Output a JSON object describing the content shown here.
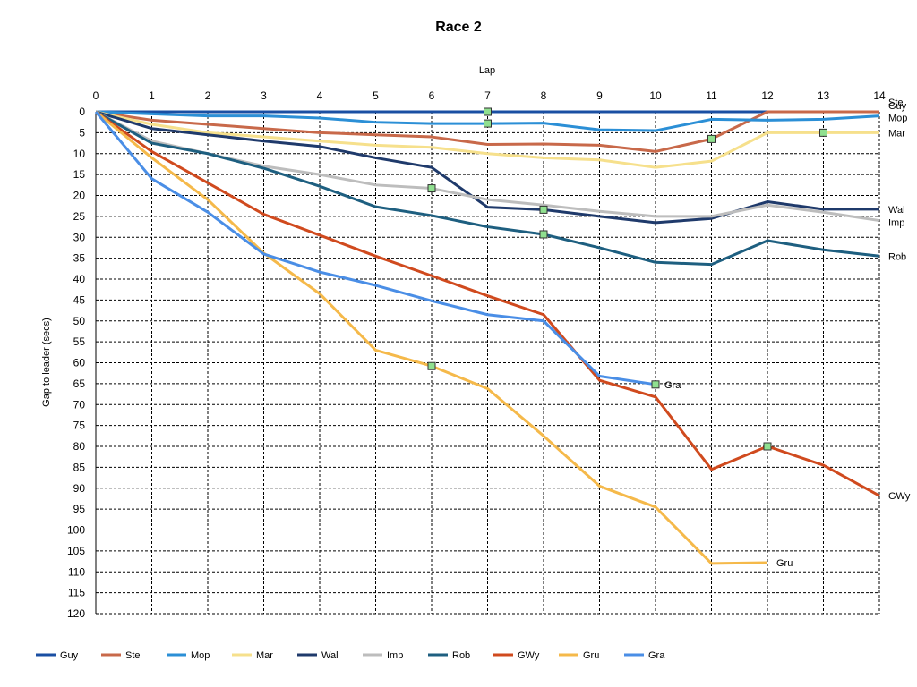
{
  "chart_data": {
    "type": "line",
    "title": "Race 2",
    "xlabel": "Lap",
    "ylabel": "Gap to leader (secs)",
    "xlim": [
      0,
      14
    ],
    "ylim": [
      0,
      120
    ],
    "x_ticks": [
      "0",
      "1",
      "2",
      "3",
      "4",
      "5",
      "6",
      "7",
      "8",
      "9",
      "10",
      "11",
      "12",
      "13",
      "14"
    ],
    "y_ticks": [
      "0",
      "5",
      "10",
      "15",
      "20",
      "25",
      "30",
      "35",
      "40",
      "45",
      "50",
      "55",
      "60",
      "65",
      "70",
      "75",
      "80",
      "85",
      "90",
      "95",
      "100",
      "105",
      "110",
      "115",
      "120"
    ],
    "y_inverted": true,
    "grid": true,
    "legend_position": "bottom",
    "series": [
      {
        "name": "Guy",
        "color": "#1a4fa3",
        "x": [
          0,
          1,
          2,
          3,
          4,
          5,
          6,
          7,
          8,
          9,
          10,
          11,
          12,
          13,
          14
        ],
        "y": [
          0,
          0,
          0,
          0,
          0,
          0,
          0,
          0,
          0,
          0,
          0,
          0,
          0,
          0,
          0
        ],
        "end_label": "Guy"
      },
      {
        "name": "Ste",
        "color": "#c8694a",
        "x": [
          0,
          1,
          2,
          3,
          4,
          5,
          6,
          7,
          8,
          9,
          10,
          11,
          12,
          13,
          14
        ],
        "y": [
          0,
          2,
          3,
          4,
          5,
          5.5,
          6,
          7.8,
          7.7,
          8,
          9.5,
          6.5,
          0,
          0,
          0
        ],
        "end_label": "Ste"
      },
      {
        "name": "Mop",
        "color": "#2b8fd6",
        "x": [
          0,
          1,
          2,
          3,
          4,
          5,
          6,
          7,
          8,
          9,
          10,
          11,
          12,
          13,
          14
        ],
        "y": [
          0,
          0.5,
          1,
          1,
          1.5,
          2.5,
          2.8,
          2.8,
          2.7,
          4.3,
          4.5,
          1.8,
          2,
          1.8,
          1
        ],
        "end_label": "Mop"
      },
      {
        "name": "Mar",
        "color": "#f6e08c",
        "x": [
          0,
          1,
          2,
          3,
          4,
          5,
          6,
          7,
          8,
          9,
          10,
          11,
          12,
          13,
          14
        ],
        "y": [
          0,
          3,
          5,
          6,
          7,
          8,
          8.5,
          10,
          11,
          11.5,
          13.3,
          11.8,
          5,
          5,
          5
        ],
        "end_label": "Mar"
      },
      {
        "name": "Wal",
        "color": "#1f3a6b",
        "x": [
          0,
          1,
          2,
          3,
          4,
          5,
          6,
          7,
          8,
          9,
          10,
          11,
          12,
          13,
          14
        ],
        "y": [
          0,
          4,
          5.5,
          7,
          8.3,
          11,
          13.3,
          22.8,
          23.4,
          25,
          26.5,
          25.5,
          21.5,
          23.3,
          23.3
        ],
        "end_label": "Wal"
      },
      {
        "name": "Imp",
        "color": "#bdbdbd",
        "x": [
          0,
          1,
          2,
          3,
          4,
          5,
          6,
          7,
          8,
          9,
          10,
          11,
          12,
          13,
          14
        ],
        "y": [
          0,
          7,
          10,
          13,
          15,
          17.5,
          18.3,
          21,
          22.3,
          23.8,
          25,
          25,
          22.3,
          24,
          26
        ],
        "end_label": "Imp"
      },
      {
        "name": "Rob",
        "color": "#1e5f80",
        "x": [
          0,
          1,
          2,
          3,
          4,
          5,
          6,
          7,
          8,
          9,
          10,
          11,
          12,
          13,
          14
        ],
        "y": [
          0,
          7.5,
          10,
          13.5,
          17.8,
          22.7,
          24.8,
          27.5,
          29.3,
          32.5,
          36,
          36.5,
          30.8,
          33,
          34.5
        ],
        "end_label": "Rob"
      },
      {
        "name": "GWy",
        "color": "#d04a1e",
        "x": [
          0,
          1,
          2,
          3,
          4,
          5,
          6,
          7,
          8,
          9,
          10,
          11,
          12,
          13,
          14
        ],
        "y": [
          0,
          9.5,
          17,
          24.5,
          29.5,
          34.5,
          39.2,
          44,
          48.5,
          64.2,
          68.2,
          85.5,
          80,
          84.5,
          91.8
        ],
        "end_label": "GWy"
      },
      {
        "name": "Gru",
        "color": "#f5b94a",
        "x": [
          0,
          1,
          2,
          3,
          4,
          5,
          6,
          7,
          8,
          9,
          10,
          11,
          12
        ],
        "y": [
          0,
          11,
          21,
          33.8,
          43.5,
          57,
          60.8,
          66.2,
          77.5,
          89.5,
          94.5,
          108,
          107.8
        ],
        "end_label": "Gru"
      },
      {
        "name": "Gra",
        "color": "#4a8ee6",
        "x": [
          0,
          1,
          2,
          3,
          4,
          5,
          6,
          7,
          8,
          9,
          10
        ],
        "y": [
          0,
          16,
          24,
          34,
          38.3,
          41.5,
          45.2,
          48.5,
          50,
          63.2,
          65.2
        ],
        "end_label": "Gra"
      }
    ],
    "markers": [
      {
        "x": 7,
        "y": 0
      },
      {
        "x": 7,
        "y": 2.8
      },
      {
        "x": 11,
        "y": 6.5
      },
      {
        "x": 13,
        "y": 5
      },
      {
        "x": 6,
        "y": 18.3
      },
      {
        "x": 8,
        "y": 23.4
      },
      {
        "x": 8,
        "y": 29.3
      },
      {
        "x": 6,
        "y": 60.8
      },
      {
        "x": 10,
        "y": 65.2
      },
      {
        "x": 12,
        "y": 80
      }
    ],
    "marker_color": "#90e090"
  }
}
